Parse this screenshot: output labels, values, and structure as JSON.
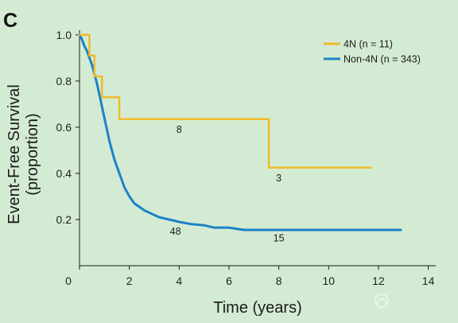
{
  "panel_label": "C",
  "chart_data": {
    "type": "line",
    "xlabel": "Time (years)",
    "ylabel": "Event-Free Survival (proportion)",
    "ylabel_lines": [
      "Event-Free Survival",
      "(proportion)"
    ],
    "xlim": [
      0,
      14.3
    ],
    "ylim": [
      0,
      1.02
    ],
    "xticks": [
      0,
      2,
      4,
      6,
      8,
      10,
      12,
      14
    ],
    "yticks": [
      0.2,
      0.4,
      0.6,
      0.8,
      1.0
    ],
    "xtick_labels": [
      "0",
      "2",
      "4",
      "6",
      "8",
      "10",
      "12",
      "14"
    ],
    "ytick_labels": [
      "0.2",
      "0.4",
      "0.6",
      "0.8",
      "1.0"
    ],
    "legend_position": "top-right",
    "series": [
      {
        "name": "4N (n = 11)",
        "color": "#f0bb2b",
        "step": true,
        "x": [
          0,
          0.4,
          0.6,
          0.9,
          1.6,
          7.6,
          11.7
        ],
        "y": [
          1.0,
          0.91,
          0.82,
          0.73,
          0.635,
          0.425,
          0.425
        ]
      },
      {
        "name": "Non-4N (n = 343)",
        "color": "#1b82c9",
        "step": false,
        "x": [
          0,
          0.1,
          0.2,
          0.3,
          0.4,
          0.5,
          0.6,
          0.7,
          0.8,
          0.9,
          1.0,
          1.1,
          1.2,
          1.3,
          1.4,
          1.5,
          1.6,
          1.7,
          1.8,
          2.0,
          2.2,
          2.4,
          2.6,
          2.8,
          3.0,
          3.2,
          3.4,
          3.6,
          3.8,
          4.0,
          4.5,
          5.0,
          5.4,
          6.0,
          6.6,
          7.0,
          8.0,
          9.0,
          10.0,
          11.0,
          12.0,
          12.9
        ],
        "y": [
          1.0,
          0.98,
          0.95,
          0.93,
          0.9,
          0.87,
          0.83,
          0.79,
          0.74,
          0.69,
          0.64,
          0.59,
          0.54,
          0.5,
          0.46,
          0.43,
          0.4,
          0.37,
          0.34,
          0.3,
          0.27,
          0.255,
          0.24,
          0.23,
          0.22,
          0.21,
          0.205,
          0.2,
          0.195,
          0.19,
          0.18,
          0.175,
          0.165,
          0.165,
          0.155,
          0.155,
          0.155,
          0.155,
          0.155,
          0.155,
          0.155,
          0.155
        ]
      }
    ],
    "annotations": [
      {
        "text": "8",
        "x": 4.0,
        "y": 0.575
      },
      {
        "text": "3",
        "x": 8.0,
        "y": 0.365
      },
      {
        "text": "48",
        "x": 3.85,
        "y": 0.135
      },
      {
        "text": "15",
        "x": 8.0,
        "y": 0.105
      }
    ]
  }
}
